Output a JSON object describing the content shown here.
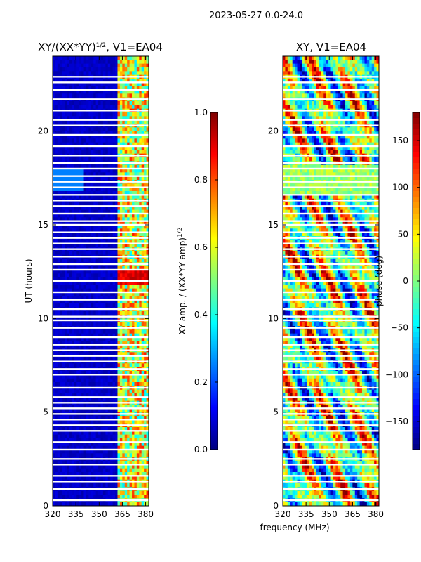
{
  "suptitle": "2023-05-27 0.0-24.0",
  "xlabel": "frequency (MHz)",
  "gradient": [
    "#00007f",
    "#0000ff",
    "#007fff",
    "#00ffff",
    "#7fff7f",
    "#ffff00",
    "#ff7f00",
    "#ff0000",
    "#7f0000"
  ],
  "chart_data": [
    {
      "type": "heatmap",
      "panel": "left",
      "title": "XY/(XX*YY)^1/2, V1=EA04",
      "title_main": "XY/(XX*YY)",
      "title_sup": "1/2",
      "title_tail": ", V1=EA04",
      "ylabel": "UT (hours)",
      "xlim": [
        320,
        382
      ],
      "ylim": [
        0,
        24
      ],
      "xticks": [
        "320",
        "335",
        "350",
        "365",
        "380"
      ],
      "xtick_values": [
        320,
        335,
        350,
        365,
        380
      ],
      "yticks": [
        "0",
        "5",
        "10",
        "15",
        "20"
      ],
      "ytick_values": [
        0,
        5,
        10,
        15,
        20
      ],
      "colorbar": {
        "label": "XY amp. / (XX*YY amp)^1/2",
        "label_main": "XY amp. / (XX*YY amp)",
        "label_sup": "1/2",
        "vmin": 0.0,
        "vmax": 1.0,
        "ticks": [
          "0.0",
          "0.2",
          "0.4",
          "0.6",
          "0.8",
          "1.0"
        ],
        "tick_values": [
          0.0,
          0.2,
          0.4,
          0.6,
          0.8,
          1.0
        ]
      }
    },
    {
      "type": "heatmap",
      "panel": "right",
      "title": "XY, V1=EA04",
      "ylabel": "",
      "xlim": [
        320,
        382
      ],
      "ylim": [
        0,
        24
      ],
      "xticks": [
        "320",
        "335",
        "350",
        "365",
        "380"
      ],
      "xtick_values": [
        320,
        335,
        350,
        365,
        380
      ],
      "yticks": [
        "0",
        "5",
        "10",
        "15",
        "20"
      ],
      "ytick_values": [
        0,
        5,
        10,
        15,
        20
      ],
      "colorbar": {
        "label": "phase (deg)",
        "vmin": -180,
        "vmax": 180,
        "ticks": [
          "−150",
          "−100",
          "−50",
          "0",
          "50",
          "100",
          "150"
        ],
        "tick_values": [
          -150,
          -100,
          -50,
          0,
          50,
          100,
          150
        ]
      }
    }
  ],
  "flagged_rows_ut": [
    0.3,
    0.9,
    1.3,
    1.6,
    2.2,
    2.5,
    3.0,
    3.4,
    4.0,
    4.3,
    4.6,
    4.9,
    5.2,
    5.5,
    5.8,
    6.3,
    7.0,
    7.3,
    7.7,
    8.0,
    8.3,
    8.6,
    9.0,
    9.5,
    9.9,
    10.1,
    10.5,
    11.0,
    11.4,
    12.0,
    12.6,
    12.9,
    13.3,
    13.7,
    14.0,
    14.3,
    14.6,
    15.0,
    15.2,
    15.6,
    16.0,
    16.3,
    16.6,
    17.0,
    17.3,
    17.6,
    18.0,
    18.3,
    18.7,
    19.2,
    19.8,
    20.3,
    20.6,
    21.1,
    21.7,
    22.2,
    22.6,
    22.9
  ]
}
